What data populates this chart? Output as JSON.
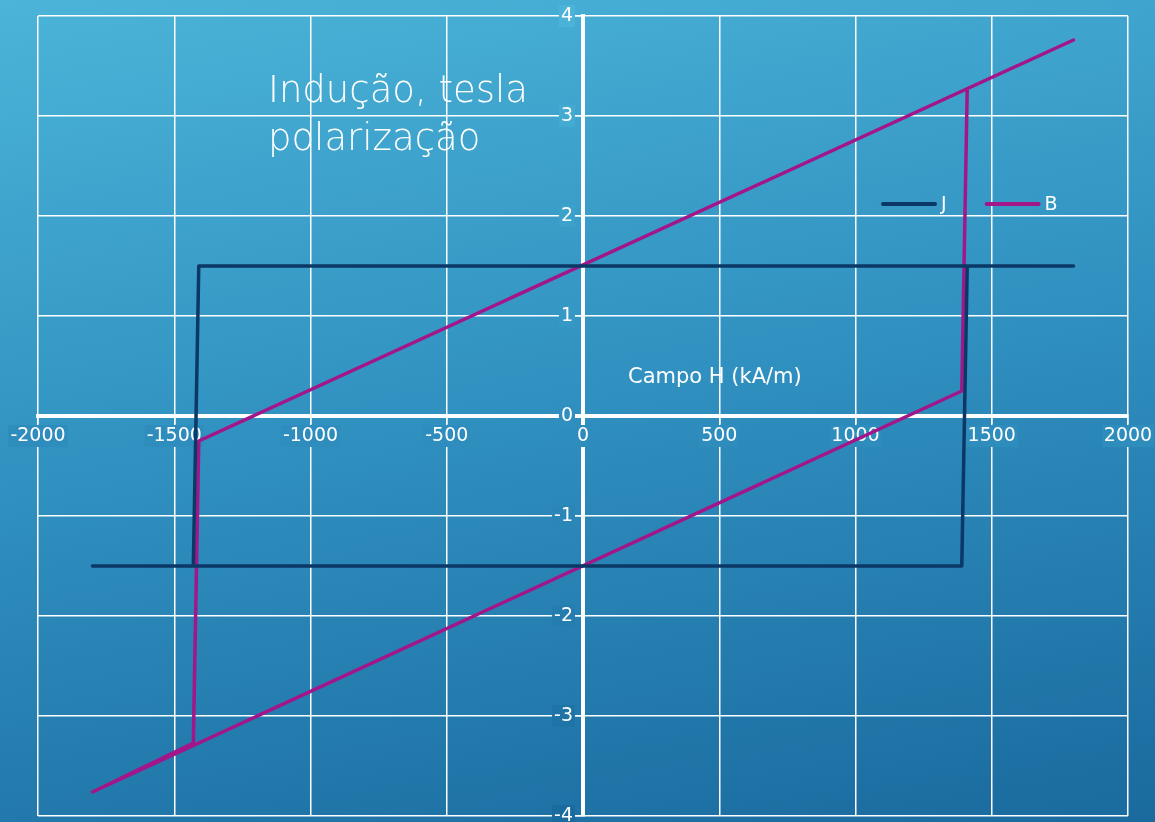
{
  "chart_data": {
    "type": "line",
    "xlabel": "Campo H (kA/m)",
    "ylabel": "Indução, tesla polarização",
    "xlim": [
      -2000,
      2000
    ],
    "xticks": [
      -2000,
      -1500,
      -1000,
      -500,
      0,
      500,
      1000,
      1500,
      2000
    ],
    "ylim": [
      -4,
      4
    ],
    "yticks": [
      -4,
      -3,
      -2,
      -1,
      0,
      1,
      2,
      3,
      4
    ],
    "grid": true,
    "legend": "right",
    "marker": "none",
    "line_style": "solid",
    "series": [
      {
        "name": "J",
        "color": "#0b3866",
        "x": [
          1800,
          -1410,
          -1430,
          -1800,
          1390,
          1410
        ],
        "values": [
          1.5,
          1.5,
          -1.5,
          -1.5,
          -1.5,
          1.5
        ]
      },
      {
        "name": "B",
        "color": "#a3168a",
        "x": [
          1800,
          -1410,
          -1430,
          -1800,
          1390,
          1410
        ],
        "values": [
          3.76,
          -0.25,
          -3.27,
          -3.76,
          0.25,
          3.27
        ]
      }
    ]
  }
}
